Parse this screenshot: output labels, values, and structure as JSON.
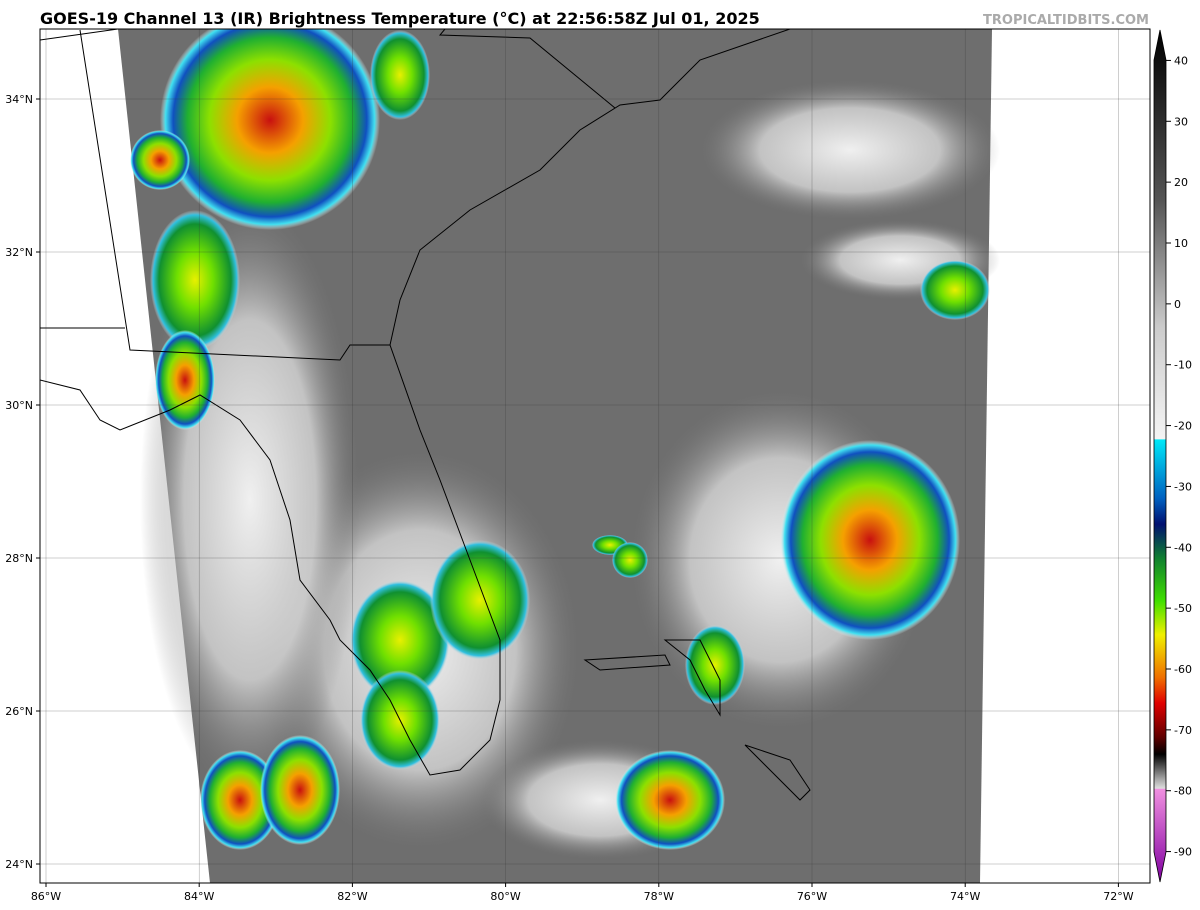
{
  "header": {
    "title": "GOES-19 Channel 13 (IR) Brightness Temperature (°C) at 22:56:58Z Jul 01, 2025",
    "watermark": "TROPICALTIDBITS.COM"
  },
  "map": {
    "lat_labels": [
      "34°N",
      "32°N",
      "30°N",
      "28°N",
      "26°N",
      "24°N"
    ],
    "lon_labels": [
      "86°W",
      "84°W",
      "82°W",
      "80°W",
      "78°W",
      "76°W",
      "74°W",
      "72°W"
    ]
  },
  "colorbar": {
    "range": [
      -95,
      45
    ],
    "ticks": [
      40,
      30,
      20,
      10,
      0,
      -10,
      -20,
      -30,
      -40,
      -50,
      -60,
      -70,
      -80,
      -90
    ]
  }
}
